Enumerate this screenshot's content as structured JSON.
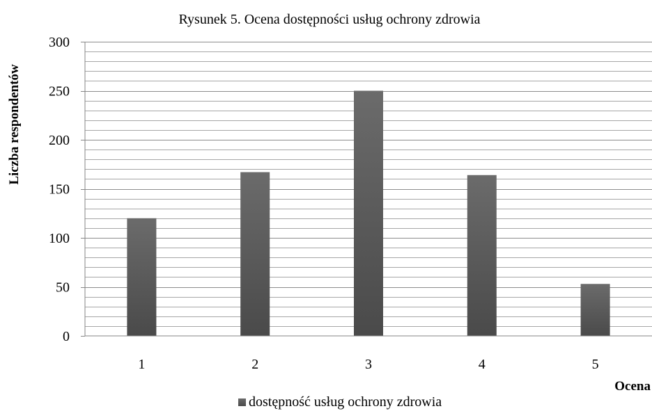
{
  "chart_data": {
    "type": "bar",
    "title": "Rysunek 5. Ocena dostępności usług ochrony zdrowia",
    "xlabel": "Ocena",
    "ylabel": "Liczba respondentów",
    "categories": [
      "1",
      "2",
      "3",
      "4",
      "5"
    ],
    "series": [
      {
        "name": "dostępność usług ochrony zdrowia",
        "values": [
          120,
          167,
          250,
          164,
          53
        ]
      }
    ],
    "ylim": [
      0,
      300
    ],
    "yticks": [
      "0",
      "50",
      "100",
      "150",
      "200",
      "250",
      "300"
    ],
    "major_tick_step": 50,
    "minor_tick_step": 10,
    "grid": true,
    "legend": "bottom",
    "colors": {
      "bar": "#5a5a5a",
      "bar_light": "#6b6b6b",
      "bar_dark": "#4a4a4a",
      "grid": "#a6a6a6"
    }
  }
}
